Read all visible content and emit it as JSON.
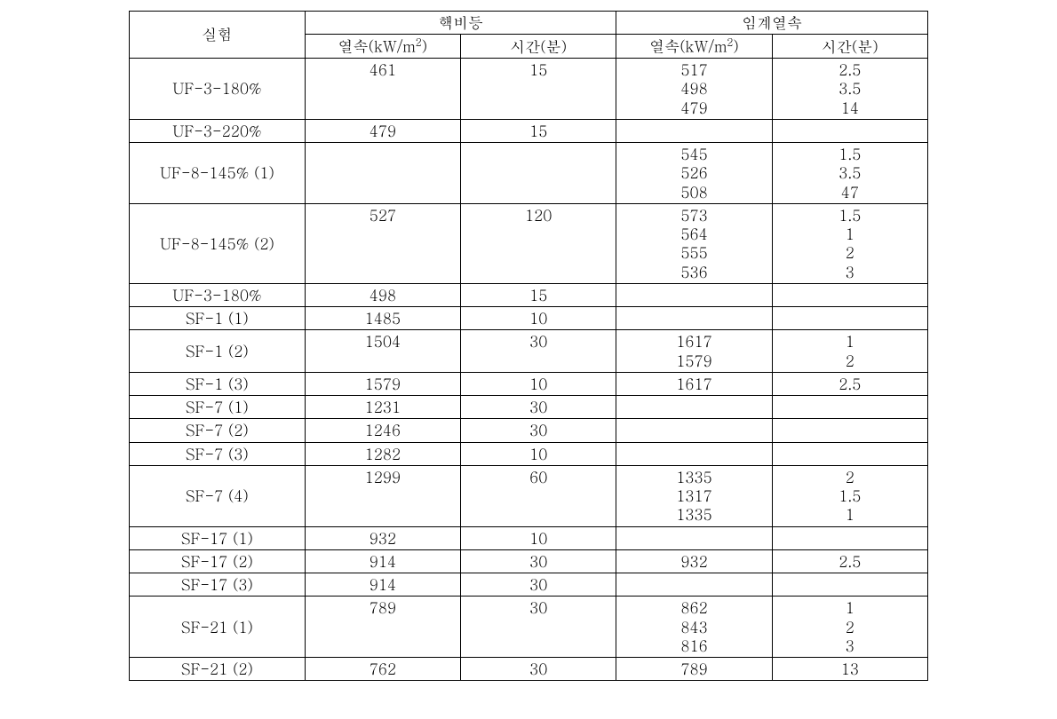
{
  "headers": {
    "experiment": "실험",
    "nucleate_boiling": "핵비등",
    "chf": "임계열속",
    "heat_flux_prefix": "열속(kW/m",
    "heat_flux_suffix": ")",
    "time": "시간(분)"
  },
  "rows": [
    {
      "exp": "UF-3-180%",
      "nb_flux": "461",
      "nb_time": "15",
      "chf_flux": "517\n498\n479",
      "chf_time": "2.5\n3.5\n14",
      "exp_mid": true
    },
    {
      "exp": "UF-3-220%",
      "nb_flux": "479",
      "nb_time": "15",
      "chf_flux": "",
      "chf_time": ""
    },
    {
      "exp": "UF-8-145%  (1)",
      "nb_flux": "",
      "nb_time": "",
      "chf_flux": "545\n526\n508",
      "chf_time": "1.5\n3.5\n47",
      "exp_mid": true
    },
    {
      "exp": "UF-8-145%  (2)",
      "nb_flux": "527",
      "nb_time": "120",
      "chf_flux": "573\n564\n555\n536",
      "chf_time": "1.5\n1\n2\n3",
      "exp_mid": true
    },
    {
      "exp": "UF-3-180%",
      "nb_flux": "498",
      "nb_time": "15",
      "chf_flux": "",
      "chf_time": ""
    },
    {
      "exp": "SF-1  (1)",
      "nb_flux": "1485",
      "nb_time": "10",
      "chf_flux": "",
      "chf_time": ""
    },
    {
      "exp": "SF-1  (2)",
      "nb_flux": "1504",
      "nb_time": "30",
      "chf_flux": "1617\n1579",
      "chf_time": "1\n2",
      "exp_mid": true
    },
    {
      "exp": "SF-1  (3)",
      "nb_flux": "1579",
      "nb_time": "10",
      "chf_flux": "1617",
      "chf_time": "2.5"
    },
    {
      "exp": "SF-7  (1)",
      "nb_flux": "1231",
      "nb_time": "30",
      "chf_flux": "",
      "chf_time": ""
    },
    {
      "exp": "SF-7  (2)",
      "nb_flux": "1246",
      "nb_time": "30",
      "chf_flux": "",
      "chf_time": ""
    },
    {
      "exp": "SF-7  (3)",
      "nb_flux": "1282",
      "nb_time": "10",
      "chf_flux": "",
      "chf_time": ""
    },
    {
      "exp": "SF-7  (4)",
      "nb_flux": "1299",
      "nb_time": "60",
      "chf_flux": "1335\n1317\n1335",
      "chf_time": "2\n1.5\n1",
      "exp_mid": true
    },
    {
      "exp": "SF-17  (1)",
      "nb_flux": "932",
      "nb_time": "10",
      "chf_flux": "",
      "chf_time": ""
    },
    {
      "exp": "SF-17  (2)",
      "nb_flux": "914",
      "nb_time": "30",
      "chf_flux": "932",
      "chf_time": "2.5"
    },
    {
      "exp": "SF-17  (3)",
      "nb_flux": "914",
      "nb_time": "30",
      "chf_flux": "",
      "chf_time": ""
    },
    {
      "exp": "SF-21  (1)",
      "nb_flux": "789",
      "nb_time": "30",
      "chf_flux": "862\n843\n816",
      "chf_time": "1\n2\n3",
      "exp_mid": true
    },
    {
      "exp": "SF-21  (2)",
      "nb_flux": "762",
      "nb_time": "30",
      "chf_flux": "789",
      "chf_time": "13"
    }
  ]
}
